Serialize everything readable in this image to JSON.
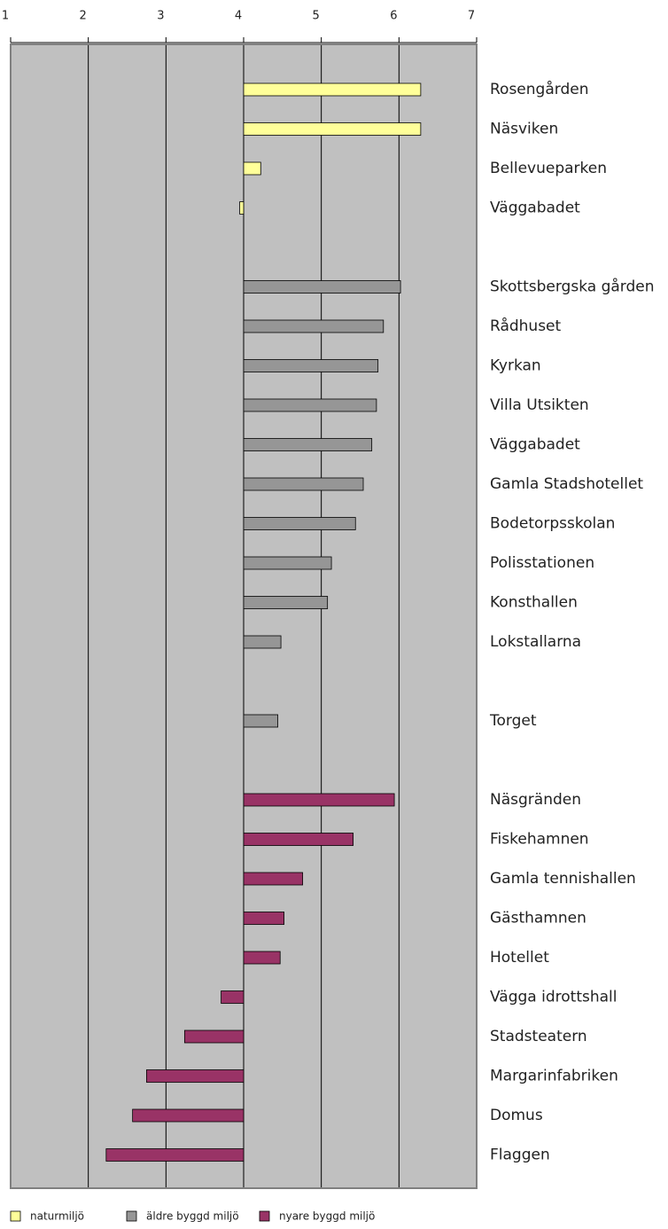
{
  "chart_data": {
    "type": "hbar",
    "categories": [
      "Rosengården",
      "Näsviken",
      "Bellevueparken",
      "Väggabadet",
      null,
      "Skottsbergska gården",
      "Rådhuset",
      "Kyrkan",
      "Villa Utsikten",
      "Väggabadet",
      "Gamla Stadshotellet",
      "Bodetorpsskolan",
      "Polisstationen",
      "Konsthallen",
      "Lokstallarna",
      null,
      "Torget",
      null,
      "Näsgränden",
      "Fiskehamnen",
      "Gamla tennishallen",
      "Gästhamnen",
      "Hotellet",
      "Vägga idrottshall",
      "Stadsteatern",
      "Margarinfabriken",
      "Domus",
      "Flaggen"
    ],
    "series": [
      {
        "name": "naturmiljö",
        "color": "#ffff99",
        "values": [
          6.28,
          6.28,
          4.22,
          3.95,
          null,
          null,
          null,
          null,
          null,
          null,
          null,
          null,
          null,
          null,
          null,
          null,
          null,
          null,
          null,
          null,
          null,
          null,
          null,
          null,
          null,
          null,
          null,
          null
        ]
      },
      {
        "name": "äldre byggd miljö",
        "color": "#969696",
        "values": [
          null,
          null,
          null,
          null,
          null,
          6.02,
          5.8,
          5.73,
          5.71,
          5.65,
          5.54,
          5.44,
          5.13,
          5.08,
          4.48,
          null,
          4.44,
          null,
          null,
          null,
          null,
          null,
          null,
          null,
          null,
          null,
          null,
          null
        ]
      },
      {
        "name": "nyare byggd miljö",
        "color": "#993366",
        "values": [
          null,
          null,
          null,
          null,
          null,
          null,
          null,
          null,
          null,
          null,
          null,
          null,
          null,
          null,
          null,
          null,
          null,
          null,
          5.94,
          5.41,
          4.76,
          4.52,
          4.47,
          3.71,
          3.24,
          2.75,
          2.57,
          2.23
        ]
      }
    ],
    "xlim": [
      1,
      7
    ],
    "xticks": [
      1,
      2,
      3,
      4,
      5,
      6,
      7
    ],
    "xcross": 4,
    "grid": true,
    "legend": "bottom"
  }
}
